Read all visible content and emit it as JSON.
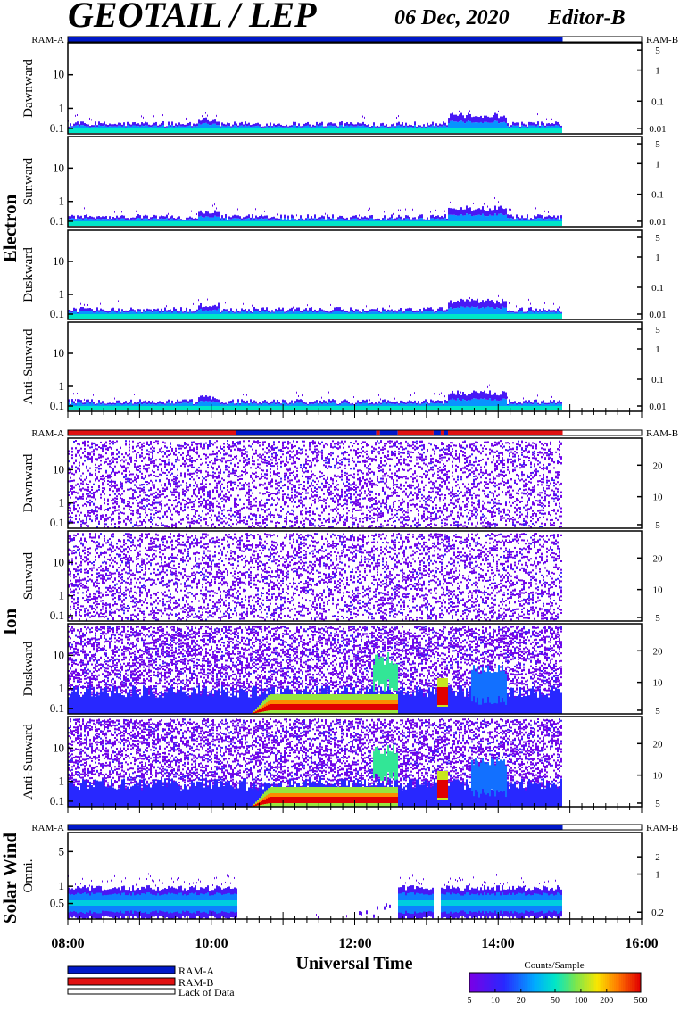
{
  "header": {
    "title": "GEOTAIL / LEP",
    "date": "06 Dec, 2020",
    "editor": "Editor-B"
  },
  "sections": {
    "electron": "Electron",
    "ion": "Ion",
    "solar_wind": "Solar Wind"
  },
  "bar_labels": {
    "left": "RAM-A",
    "right": "RAM-B"
  },
  "x_axis": {
    "label": "Universal Time",
    "ticks": [
      "08:00",
      "10:00",
      "12:00",
      "14:00",
      "16:00"
    ]
  },
  "legend": {
    "items": [
      {
        "label": "RAM-A",
        "color": "#0018c8"
      },
      {
        "label": "RAM-B",
        "color": "#e01010"
      },
      {
        "label": "Lack of Data",
        "color": "#ffffff"
      }
    ]
  },
  "colorbar": {
    "title": "Counts/Sample",
    "ticks": [
      "5",
      "10",
      "20",
      "50",
      "100",
      "200",
      "500"
    ]
  },
  "chart_data": {
    "type": "heatmap",
    "x_range_hours": [
      8,
      16
    ],
    "data_end_hour": 14.9,
    "status_bars": [
      {
        "group": "Electron",
        "segments": [
          {
            "from": 8.0,
            "to": 14.9,
            "mode": "RAM-A"
          },
          {
            "from": 14.9,
            "to": 16.0,
            "mode": "Lack of Data"
          }
        ]
      },
      {
        "group": "Ion",
        "segments": [
          {
            "from": 8.0,
            "to": 10.35,
            "mode": "RAM-B"
          },
          {
            "from": 10.35,
            "to": 12.3,
            "mode": "RAM-A"
          },
          {
            "from": 12.3,
            "to": 12.35,
            "mode": "RAM-B"
          },
          {
            "from": 12.35,
            "to": 12.6,
            "mode": "RAM-A"
          },
          {
            "from": 12.6,
            "to": 13.1,
            "mode": "RAM-B"
          },
          {
            "from": 13.1,
            "to": 13.2,
            "mode": "RAM-A"
          },
          {
            "from": 13.2,
            "to": 13.25,
            "mode": "RAM-B"
          },
          {
            "from": 13.25,
            "to": 13.3,
            "mode": "RAM-A"
          },
          {
            "from": 13.3,
            "to": 14.9,
            "mode": "RAM-B"
          },
          {
            "from": 14.9,
            "to": 16.0,
            "mode": "Lack of Data"
          }
        ]
      },
      {
        "group": "Solar Wind",
        "segments": [
          {
            "from": 8.0,
            "to": 14.9,
            "mode": "RAM-A"
          },
          {
            "from": 14.9,
            "to": 16.0,
            "mode": "Lack of Data"
          }
        ]
      }
    ],
    "panels": [
      {
        "group": "Electron",
        "label": "Dawnward",
        "left_ticks": [
          "10",
          "1",
          "0.1"
        ],
        "right_ticks": [
          "5",
          "1",
          "0.1",
          "0.01"
        ],
        "kind": "electron"
      },
      {
        "group": "Electron",
        "label": "Sunward",
        "left_ticks": [
          "10",
          "1",
          "0.1"
        ],
        "right_ticks": [
          "5",
          "1",
          "0.1",
          "0.01"
        ],
        "kind": "electron"
      },
      {
        "group": "Electron",
        "label": "Duskward",
        "left_ticks": [
          "10",
          "1",
          "0.1"
        ],
        "right_ticks": [
          "5",
          "1",
          "0.1",
          "0.01"
        ],
        "kind": "electron"
      },
      {
        "group": "Electron",
        "label": "Anti-Sunward",
        "left_ticks": [
          "10",
          "1",
          "0.1"
        ],
        "right_ticks": [
          "5",
          "1",
          "0.1",
          "0.01"
        ],
        "kind": "electron"
      },
      {
        "group": "Ion",
        "label": "Dawnward",
        "left_ticks": [
          "10",
          "1",
          "0.1"
        ],
        "right_ticks": [
          "20",
          "10",
          "5"
        ],
        "kind": "ion_sparse"
      },
      {
        "group": "Ion",
        "label": "Sunward",
        "left_ticks": [
          "10",
          "1",
          "0.1"
        ],
        "right_ticks": [
          "20",
          "10",
          "5"
        ],
        "kind": "ion_sparse"
      },
      {
        "group": "Ion",
        "label": "Duskward",
        "left_ticks": [
          "10",
          "1",
          "0.1"
        ],
        "right_ticks": [
          "20",
          "10",
          "5"
        ],
        "kind": "ion_dense"
      },
      {
        "group": "Ion",
        "label": "Anti-Sunward",
        "left_ticks": [
          "10",
          "1",
          "0.1"
        ],
        "right_ticks": [
          "20",
          "10",
          "5"
        ],
        "kind": "ion_dense"
      },
      {
        "group": "Solar Wind",
        "label": "Omni.",
        "left_ticks": [
          "5",
          "1",
          "0.5"
        ],
        "right_ticks": [
          "2",
          "1",
          "0.2"
        ],
        "kind": "solar_wind"
      }
    ]
  }
}
